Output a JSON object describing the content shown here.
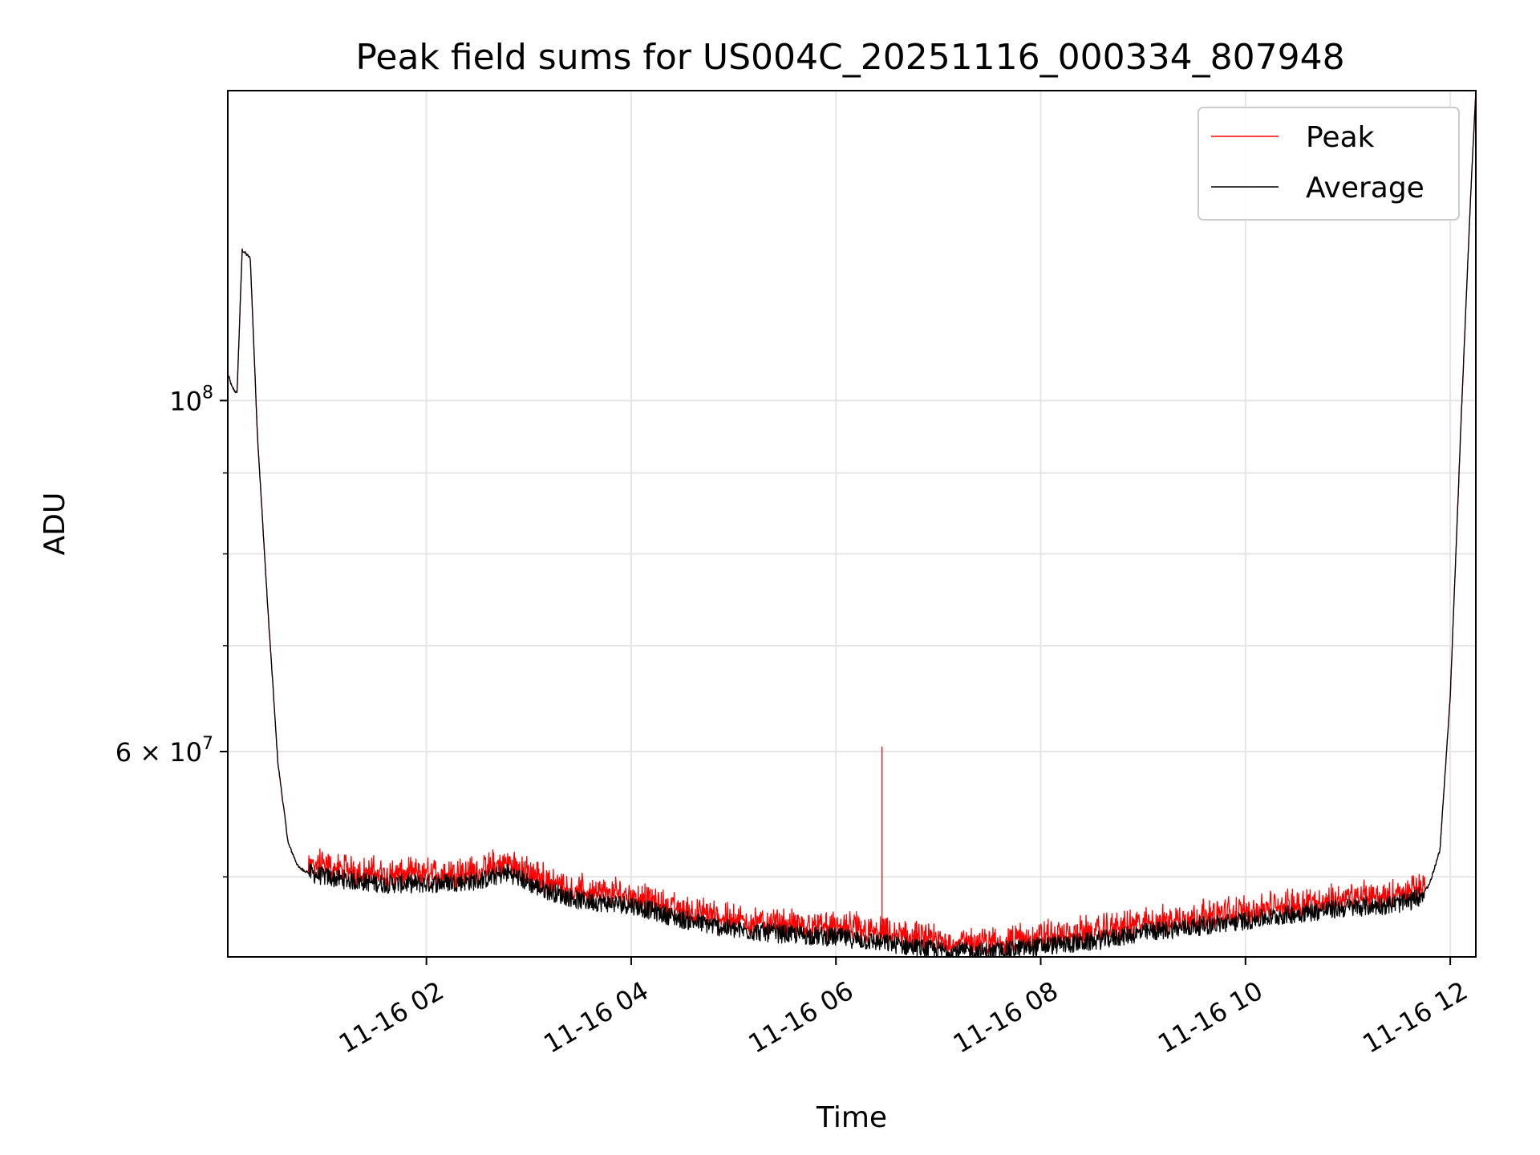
{
  "chart_data": {
    "type": "line",
    "title": "Peak field sums for US004C_20251116_000334_807948",
    "xlabel": "Time",
    "ylabel": "ADU",
    "yscale": "log",
    "ylim": [
      44500000,
      157000000
    ],
    "xlim_hours": [
      0.06,
      12.25
    ],
    "grid": true,
    "legend_location": "upper right",
    "x_ticks": [
      {
        "hour": 2,
        "label": "11-16 02"
      },
      {
        "hour": 4,
        "label": "11-16 04"
      },
      {
        "hour": 6,
        "label": "11-16 06"
      },
      {
        "hour": 8,
        "label": "11-16 08"
      },
      {
        "hour": 10,
        "label": "11-16 10"
      },
      {
        "hour": 12,
        "label": "11-16 12"
      }
    ],
    "y_major_ticks": [
      {
        "value": 100000000,
        "base": "10",
        "exp": "8",
        "mant": ""
      },
      {
        "value": 60000000,
        "base": "10",
        "exp": "7",
        "mant": "6 × "
      }
    ],
    "y_minor_ticks": [
      50000000,
      70000000,
      80000000,
      90000000
    ],
    "series": [
      {
        "name": "Peak",
        "color": "#ff0000",
        "noise_up": 0.012,
        "spikes": [
          {
            "hour": 2.7,
            "value": 51000000
          },
          {
            "hour": 2.8,
            "value": 50800000
          },
          {
            "hour": 2.95,
            "value": 50700000
          },
          {
            "hour": 3.2,
            "value": 49800000
          },
          {
            "hour": 5.5,
            "value": 46900000
          },
          {
            "hour": 5.8,
            "value": 46900000
          },
          {
            "hour": 5.9,
            "value": 46800000
          },
          {
            "hour": 6.2,
            "value": 46300000
          },
          {
            "hour": 6.45,
            "value": 60400000
          }
        ]
      },
      {
        "name": "Average",
        "color": "#000000",
        "noise_up": 0.0,
        "spikes": []
      }
    ],
    "baseline": {
      "hours": [
        0.06,
        0.1,
        0.15,
        0.2,
        0.28,
        0.35,
        0.45,
        0.55,
        0.65,
        0.75,
        0.85,
        0.95,
        1.1,
        1.3,
        1.6,
        2.0,
        2.5,
        2.8,
        3.1,
        3.5,
        4.0,
        4.5,
        5.0,
        5.5,
        6.0,
        6.5,
        7.0,
        7.5,
        8.0,
        8.5,
        9.0,
        9.5,
        10.0,
        10.5,
        11.0,
        11.4,
        11.6,
        11.7,
        11.8,
        11.9,
        12.0,
        12.1,
        12.2,
        12.25
      ],
      "values": [
        104000000,
        102000000,
        101000000,
        124500000,
        123000000,
        95000000,
        74000000,
        59000000,
        52500000,
        50700000,
        50300000,
        50100000,
        49900000,
        49700000,
        49500000,
        49500000,
        49700000,
        50300000,
        49200000,
        48300000,
        48000000,
        47000000,
        46300000,
        46000000,
        45800000,
        45400000,
        44900000,
        44800000,
        45200000,
        45500000,
        46100000,
        46500000,
        46900000,
        47400000,
        47800000,
        48000000,
        48200000,
        48600000,
        49500000,
        52000000,
        65000000,
        95000000,
        135000000,
        157000000
      ]
    }
  }
}
